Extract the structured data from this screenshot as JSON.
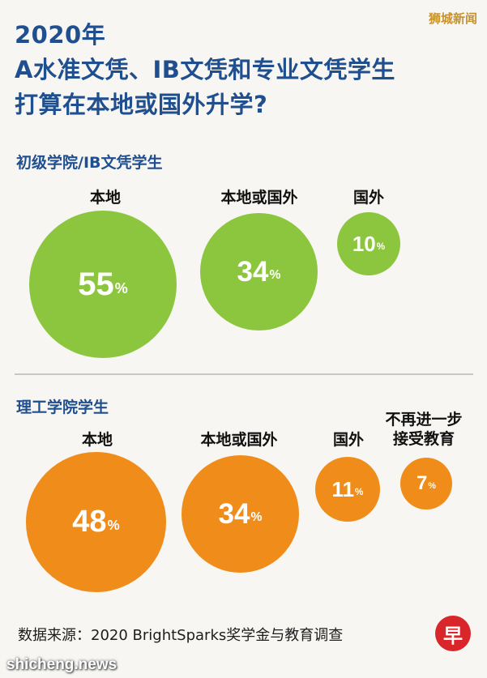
{
  "title_lines": [
    "2020年",
    "A水准文凭、IB文凭和专业文凭学生",
    "打算在本地或国外升学?"
  ],
  "watermark_top": "狮城新闻",
  "source": "数据来源：2020 BrightSparks奖学金与教育调查",
  "logo_text": "早",
  "watermark_bottom": "shicheng.news",
  "colors": {
    "green": "#8cc63f",
    "orange": "#f08c1a",
    "title": "#1f4f8f"
  },
  "chart_data": [
    {
      "type": "bubble",
      "title": "初级学院/IB文凭学生",
      "categories": [
        "本地",
        "本地或国外",
        "国外"
      ],
      "values": [
        55,
        34,
        10
      ],
      "unit": "%",
      "color": "#8cc63f"
    },
    {
      "type": "bubble",
      "title": "理工学院学生",
      "categories": [
        "本地",
        "本地或国外",
        "国外",
        "不再进一步\n接受教育"
      ],
      "values": [
        48,
        34,
        11,
        7
      ],
      "unit": "%",
      "color": "#f08c1a"
    }
  ]
}
